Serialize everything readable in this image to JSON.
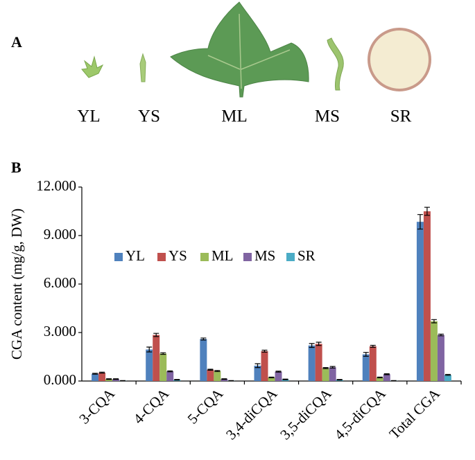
{
  "panel_a": {
    "label": "A",
    "samples": [
      "YL",
      "YS",
      "ML",
      "MS",
      "SR"
    ]
  },
  "panel_b": {
    "label": "B"
  },
  "chart_data": {
    "type": "bar",
    "y_label": "CGA content (mg/g, DW)",
    "categories": [
      "3-CQA",
      "4-CQA",
      "5-CQA",
      "3,4-diCQA",
      "3,5-diCQA",
      "4,5-diCQA",
      "Total CGA"
    ],
    "series": [
      {
        "name": "YL",
        "color": "#4f81bd",
        "values": [
          0.45,
          1.95,
          2.6,
          0.95,
          2.2,
          1.65,
          9.85
        ],
        "errors": [
          0.03,
          0.15,
          0.06,
          0.12,
          0.12,
          0.12,
          0.45
        ]
      },
      {
        "name": "YS",
        "color": "#c0504d",
        "values": [
          0.52,
          2.85,
          0.7,
          1.85,
          2.3,
          2.15,
          10.5
        ],
        "errors": [
          0.03,
          0.1,
          0.03,
          0.06,
          0.1,
          0.06,
          0.25
        ]
      },
      {
        "name": "ML",
        "color": "#9bbb59",
        "values": [
          0.12,
          1.7,
          0.62,
          0.22,
          0.8,
          0.22,
          3.7
        ],
        "errors": [
          0.02,
          0.05,
          0.03,
          0.02,
          0.03,
          0.02,
          0.1
        ]
      },
      {
        "name": "MS",
        "color": "#8064a2",
        "values": [
          0.12,
          0.6,
          0.12,
          0.58,
          0.85,
          0.42,
          2.85
        ],
        "errors": [
          0.02,
          0.03,
          0.02,
          0.03,
          0.05,
          0.03,
          0.05
        ]
      },
      {
        "name": "SR",
        "color": "#4bacc6",
        "values": [
          0.02,
          0.08,
          0.02,
          0.1,
          0.08,
          0.02,
          0.38
        ],
        "errors": [
          0.01,
          0.02,
          0.01,
          0.02,
          0.02,
          0.01,
          0.03
        ]
      }
    ],
    "ylim": [
      0,
      12
    ],
    "yticks": [
      {
        "value": 0,
        "label": "0.000"
      },
      {
        "value": 3,
        "label": "3.000"
      },
      {
        "value": 6,
        "label": "6.000"
      },
      {
        "value": 9,
        "label": "9.000"
      },
      {
        "value": 12,
        "label": "12.000"
      }
    ],
    "legend": "center-left",
    "error_bars": true
  }
}
